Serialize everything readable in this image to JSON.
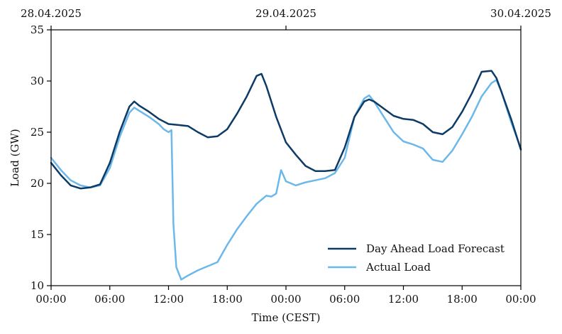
{
  "chart_data": {
    "type": "line",
    "xlabel": "Time (CEST)",
    "ylabel": "Load (GW)",
    "ylim": [
      10,
      35
    ],
    "xlim": [
      0,
      48
    ],
    "x_unit": "hours since 28.04.2025 00:00",
    "x_tick_values": [
      0,
      6,
      12,
      18,
      24,
      30,
      36,
      42,
      48
    ],
    "x_tick_labels": [
      "00:00",
      "06:00",
      "12:00",
      "18:00",
      "00:00",
      "06:00",
      "12:00",
      "18:00",
      "00:00"
    ],
    "y_ticks": [
      10,
      15,
      20,
      25,
      30,
      35
    ],
    "top_axis": {
      "tick_values": [
        0,
        24,
        48
      ],
      "labels": [
        "28.04.2025",
        "29.04.2025",
        "30.04.2025"
      ]
    },
    "grid": false,
    "legend_position": "bottom-right",
    "series": [
      {
        "name": "Day Ahead Load Forecast",
        "color": "#0d3b66",
        "x": [
          0,
          1,
          2,
          3,
          4,
          5,
          6,
          7,
          8,
          8.5,
          9,
          10,
          11,
          12,
          13,
          14,
          15,
          16,
          17,
          18,
          19,
          20,
          21,
          21.5,
          22,
          23,
          24,
          25,
          26,
          27,
          28,
          29,
          30,
          31,
          32,
          32.5,
          33,
          34,
          35,
          36,
          37,
          38,
          39,
          40,
          41,
          42,
          43,
          44,
          45,
          45.5,
          46,
          47,
          48
        ],
        "y": [
          22.0,
          20.8,
          19.8,
          19.5,
          19.6,
          19.9,
          22.0,
          25.0,
          27.5,
          28.0,
          27.6,
          27.0,
          26.3,
          25.8,
          25.7,
          25.6,
          25.0,
          24.5,
          24.6,
          25.3,
          26.8,
          28.5,
          30.5,
          30.7,
          29.5,
          26.5,
          24.0,
          22.8,
          21.7,
          21.2,
          21.2,
          21.3,
          23.5,
          26.5,
          28.0,
          28.2,
          28.0,
          27.3,
          26.6,
          26.3,
          26.2,
          25.8,
          25.0,
          24.8,
          25.5,
          27.0,
          28.8,
          30.9,
          31.0,
          30.3,
          29.0,
          26.3,
          23.3
        ]
      },
      {
        "name": "Actual Load",
        "color": "#6cb8ea",
        "x": [
          0,
          1,
          2,
          3,
          4,
          5,
          6,
          7,
          8,
          8.5,
          9,
          10,
          11,
          11.5,
          12,
          12.3,
          12.5,
          12.8,
          13.3,
          14,
          15,
          16,
          17,
          18,
          19,
          20,
          21,
          22,
          22.5,
          23,
          23.5,
          24,
          25,
          26,
          27,
          28,
          29,
          30,
          31,
          32,
          32.5,
          33,
          34,
          35,
          36,
          37,
          38,
          39,
          40,
          41,
          42,
          43,
          44,
          45,
          45.5,
          46,
          47,
          48
        ],
        "y": [
          22.5,
          21.3,
          20.3,
          19.8,
          19.6,
          19.8,
          21.5,
          24.5,
          26.9,
          27.4,
          27.1,
          26.5,
          25.8,
          25.3,
          25.0,
          25.2,
          16.0,
          11.8,
          10.6,
          11.0,
          11.5,
          11.9,
          12.3,
          14.0,
          15.5,
          16.8,
          18.0,
          18.8,
          18.7,
          19.0,
          21.3,
          20.2,
          19.8,
          20.1,
          20.3,
          20.5,
          21.0,
          22.5,
          26.5,
          28.3,
          28.6,
          28.0,
          26.5,
          25.0,
          24.1,
          23.8,
          23.4,
          22.3,
          22.1,
          23.2,
          24.8,
          26.5,
          28.5,
          29.8,
          30.1,
          29.0,
          26.0,
          23.4
        ]
      }
    ]
  }
}
